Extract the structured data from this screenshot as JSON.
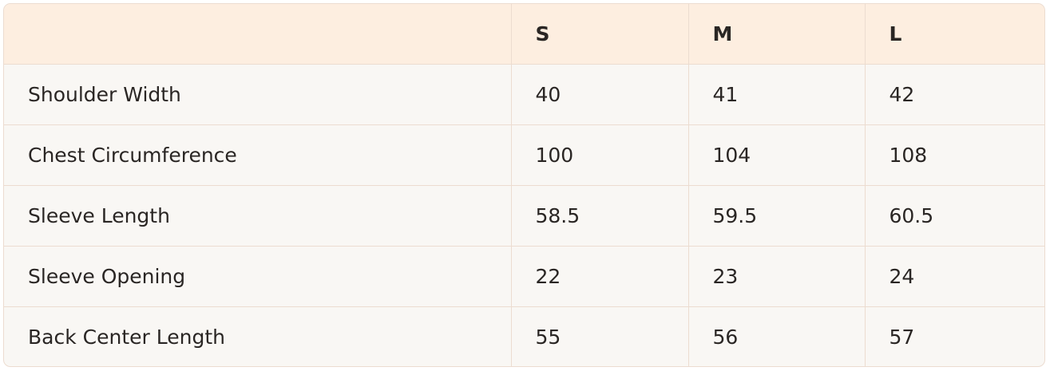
{
  "table": {
    "header": [
      "S",
      "M",
      "L"
    ],
    "rows": [
      [
        "Shoulder Width",
        40,
        41,
        42
      ],
      [
        "Chest Circumference",
        100,
        104,
        108
      ],
      [
        "Sleeve Length",
        58.5,
        59.5,
        60.5
      ],
      [
        "Sleeve Opening",
        22,
        23,
        24
      ],
      [
        "Back Center Length",
        55,
        56,
        57
      ]
    ]
  }
}
